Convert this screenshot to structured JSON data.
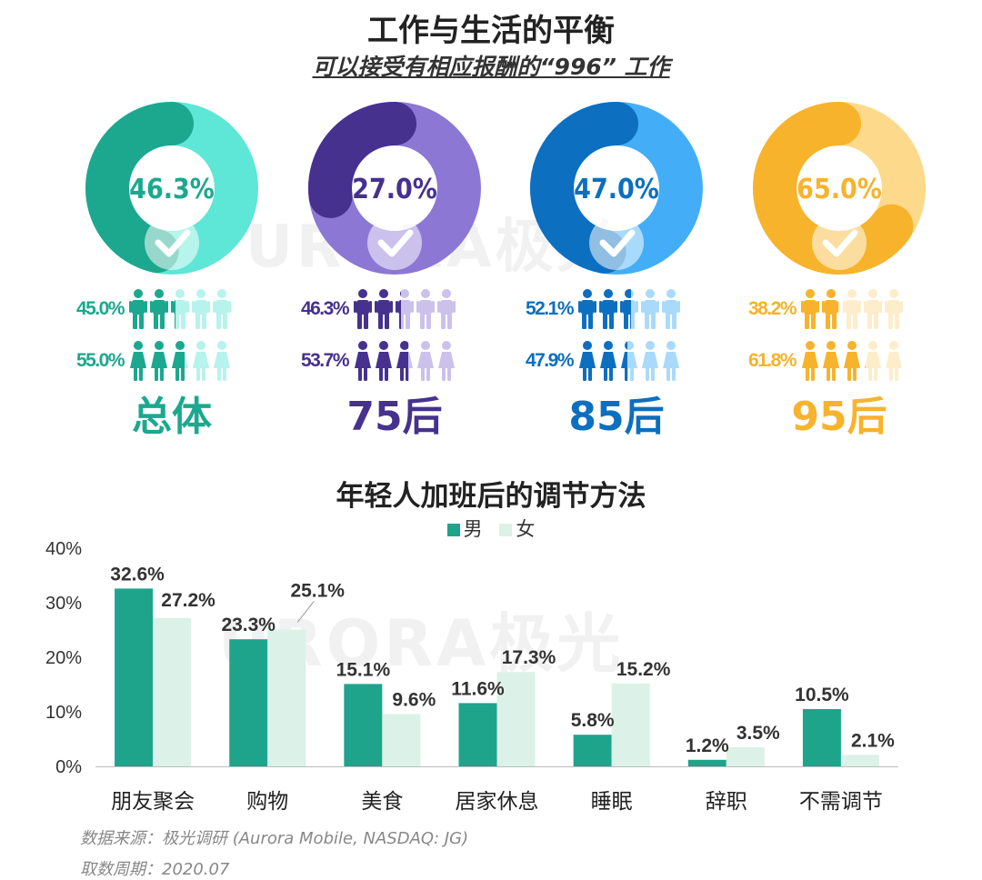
{
  "header": {
    "title": "工作与生活的平衡",
    "subtitle": "可以接受有相应报酬的“996” 工作"
  },
  "watermark": "URORA极光",
  "groups": [
    {
      "label": "总体",
      "pct": "46.3%",
      "value": 46.3,
      "male": "45.0%",
      "female": "55.0%",
      "male_v": 45.0,
      "female_v": 55.0,
      "dark": "#1ba88f",
      "light": "#5ee6d6"
    },
    {
      "label": "75后",
      "pct": "27.0%",
      "value": 27.0,
      "male": "46.3%",
      "female": "53.7%",
      "male_v": 46.3,
      "female_v": 53.7,
      "dark": "#46318f",
      "light": "#8d77d4"
    },
    {
      "label": "85后",
      "pct": "47.0%",
      "value": 47.0,
      "male": "52.1%",
      "female": "47.9%",
      "male_v": 52.1,
      "female_v": 47.9,
      "dark": "#0c6fc0",
      "light": "#43aef7"
    },
    {
      "label": "95后",
      "pct": "65.0%",
      "value": 65.0,
      "male": "38.2%",
      "female": "61.8%",
      "male_v": 38.2,
      "female_v": 61.8,
      "dark": "#f7b32b",
      "light": "#fcd98b"
    }
  ],
  "chart_data": {
    "type": "bar",
    "title": "年轻人加班后的调节方法",
    "categories": [
      "朋友聚会",
      "购物",
      "美食",
      "居家休息",
      "睡眠",
      "辞职",
      "不需调节"
    ],
    "series": [
      {
        "name": "男",
        "values": [
          32.6,
          23.3,
          15.1,
          11.6,
          5.8,
          1.2,
          10.5
        ],
        "labels": [
          "32.6%",
          "23.3%",
          "15.1%",
          "11.6%",
          "5.8%",
          "1.2%",
          "10.5%"
        ],
        "color": "#1fa48c"
      },
      {
        "name": "女",
        "values": [
          27.2,
          25.1,
          9.6,
          17.3,
          15.2,
          3.5,
          2.1
        ],
        "labels": [
          "27.2%",
          "25.1%",
          "9.6%",
          "17.3%",
          "15.2%",
          "3.5%",
          "2.1%"
        ],
        "color": "#dcf1e7"
      }
    ],
    "yticks": [
      "0%",
      "10%",
      "20%",
      "30%",
      "40%"
    ],
    "ylim": [
      0,
      40
    ]
  },
  "footer": {
    "source": "数据来源：极光调研 (Aurora Mobile, NASDAQ: JG)",
    "period": "取数周期：2020.07"
  }
}
